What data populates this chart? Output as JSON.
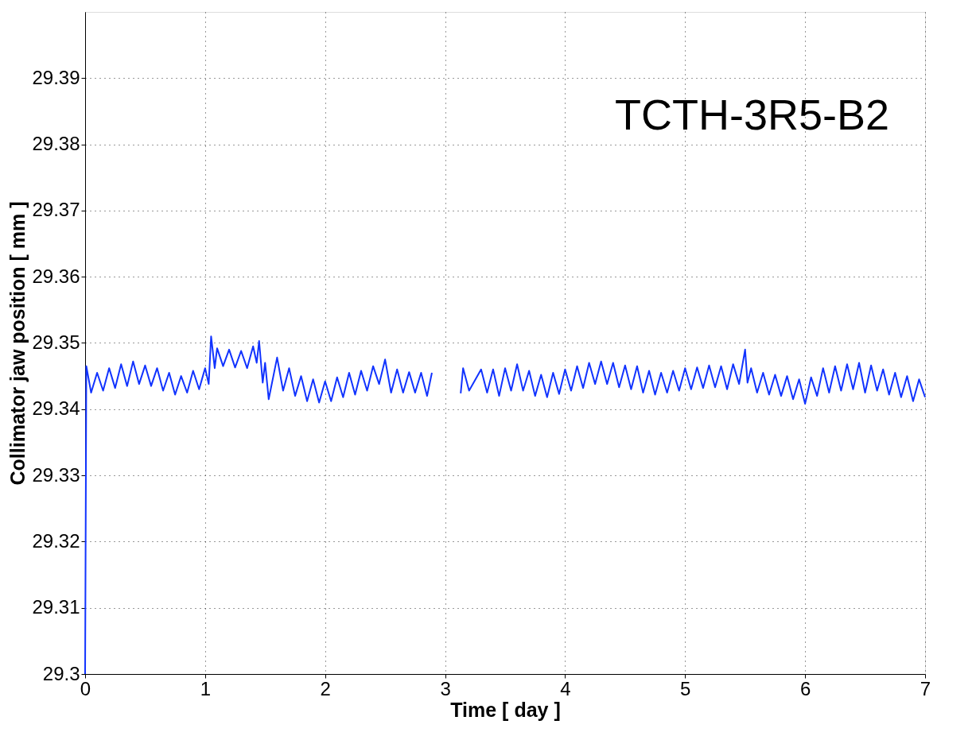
{
  "chart_data": {
    "type": "line",
    "xlabel": "Time [ day ]",
    "ylabel": "Collimator jaw position [ mm ]",
    "annotations": [
      "TCTH-3R5-B2"
    ],
    "xlim": [
      0,
      7
    ],
    "xticks": [
      0,
      1,
      2,
      3,
      4,
      5,
      6,
      7
    ],
    "ylim": [
      29.3,
      29.4
    ],
    "yticks": [
      29.3,
      29.31,
      29.32,
      29.33,
      29.34,
      29.35,
      29.36,
      29.37,
      29.38,
      29.39
    ],
    "grid": true,
    "legend": false,
    "marker": "none",
    "line_style": "solid",
    "series": [
      {
        "color": "#1133ff",
        "x": [
          0,
          0.01,
          0.05,
          0.1,
          0.15,
          0.2,
          0.25,
          0.3,
          0.35,
          0.4,
          0.45,
          0.5,
          0.55,
          0.6,
          0.65,
          0.7,
          0.75,
          0.8,
          0.85,
          0.9,
          0.95,
          1.0,
          1.03,
          1.05,
          1.08,
          1.1,
          1.15,
          1.2,
          1.25,
          1.3,
          1.35,
          1.4,
          1.43,
          1.45,
          1.48,
          1.5,
          1.53,
          1.6,
          1.65,
          1.7,
          1.75,
          1.8,
          1.85,
          1.9,
          1.95,
          2.0,
          2.05,
          2.1,
          2.15,
          2.2,
          2.25,
          2.3,
          2.35,
          2.4,
          2.45,
          2.5,
          2.55,
          2.6,
          2.65,
          2.7,
          2.75,
          2.8,
          2.85,
          2.89,
          2.9,
          3.13,
          3.15,
          3.2,
          3.3,
          3.35,
          3.4,
          3.45,
          3.5,
          3.55,
          3.6,
          3.65,
          3.7,
          3.75,
          3.8,
          3.85,
          3.9,
          3.95,
          4.0,
          4.05,
          4.1,
          4.15,
          4.2,
          4.25,
          4.3,
          4.35,
          4.4,
          4.45,
          4.5,
          4.55,
          4.6,
          4.65,
          4.7,
          4.75,
          4.8,
          4.85,
          4.9,
          4.95,
          5.0,
          5.05,
          5.1,
          5.15,
          5.2,
          5.25,
          5.3,
          5.35,
          5.4,
          5.45,
          5.5,
          5.52,
          5.55,
          5.6,
          5.65,
          5.7,
          5.75,
          5.8,
          5.85,
          5.9,
          5.95,
          6.0,
          6.05,
          6.1,
          6.15,
          6.2,
          6.25,
          6.3,
          6.35,
          6.4,
          6.45,
          6.5,
          6.55,
          6.6,
          6.65,
          6.7,
          6.75,
          6.8,
          6.85,
          6.9,
          6.95,
          7.0
        ],
        "values": [
          29.3,
          29.3465,
          29.3425,
          29.3455,
          29.3428,
          29.3462,
          29.3432,
          29.3468,
          29.3435,
          29.3472,
          29.3438,
          29.3466,
          29.3435,
          29.3462,
          29.3428,
          29.3455,
          29.3422,
          29.345,
          29.3425,
          29.3458,
          29.343,
          29.3462,
          29.3438,
          29.351,
          29.3462,
          29.3492,
          29.3465,
          29.349,
          29.3463,
          29.3488,
          29.3462,
          29.3495,
          29.347,
          29.3503,
          29.344,
          29.347,
          29.3415,
          29.3478,
          29.3428,
          29.3462,
          29.342,
          29.345,
          29.3412,
          29.3445,
          29.341,
          29.3442,
          29.3412,
          29.3448,
          29.3418,
          29.3455,
          29.3422,
          29.3458,
          29.3428,
          29.3465,
          29.3438,
          29.3475,
          29.3425,
          29.346,
          29.3425,
          29.3456,
          29.3425,
          29.3455,
          29.342,
          29.3455,
          null,
          29.3424,
          29.3462,
          29.3428,
          29.346,
          29.3425,
          29.346,
          29.342,
          29.3462,
          29.3428,
          29.3468,
          29.3428,
          29.3458,
          29.342,
          29.3452,
          29.3418,
          29.3455,
          29.3423,
          29.346,
          29.3428,
          29.3465,
          29.3432,
          29.347,
          29.3438,
          29.3472,
          29.3438,
          29.347,
          29.3433,
          29.3466,
          29.343,
          29.3465,
          29.3425,
          29.3458,
          29.3422,
          29.3455,
          29.3425,
          29.3458,
          29.3428,
          29.3462,
          29.343,
          29.3463,
          29.3432,
          29.3466,
          29.3433,
          29.3465,
          29.343,
          29.3468,
          29.3438,
          29.349,
          29.344,
          29.3462,
          29.3425,
          29.3455,
          29.3422,
          29.3452,
          29.342,
          29.345,
          29.3415,
          29.3445,
          29.3408,
          29.3448,
          29.342,
          29.3462,
          29.3425,
          29.3465,
          29.3428,
          29.3468,
          29.343,
          29.347,
          29.3425,
          29.3466,
          29.3428,
          29.346,
          29.3422,
          29.3455,
          29.3418,
          29.345,
          29.3412,
          29.3445,
          29.3418
        ]
      }
    ]
  }
}
